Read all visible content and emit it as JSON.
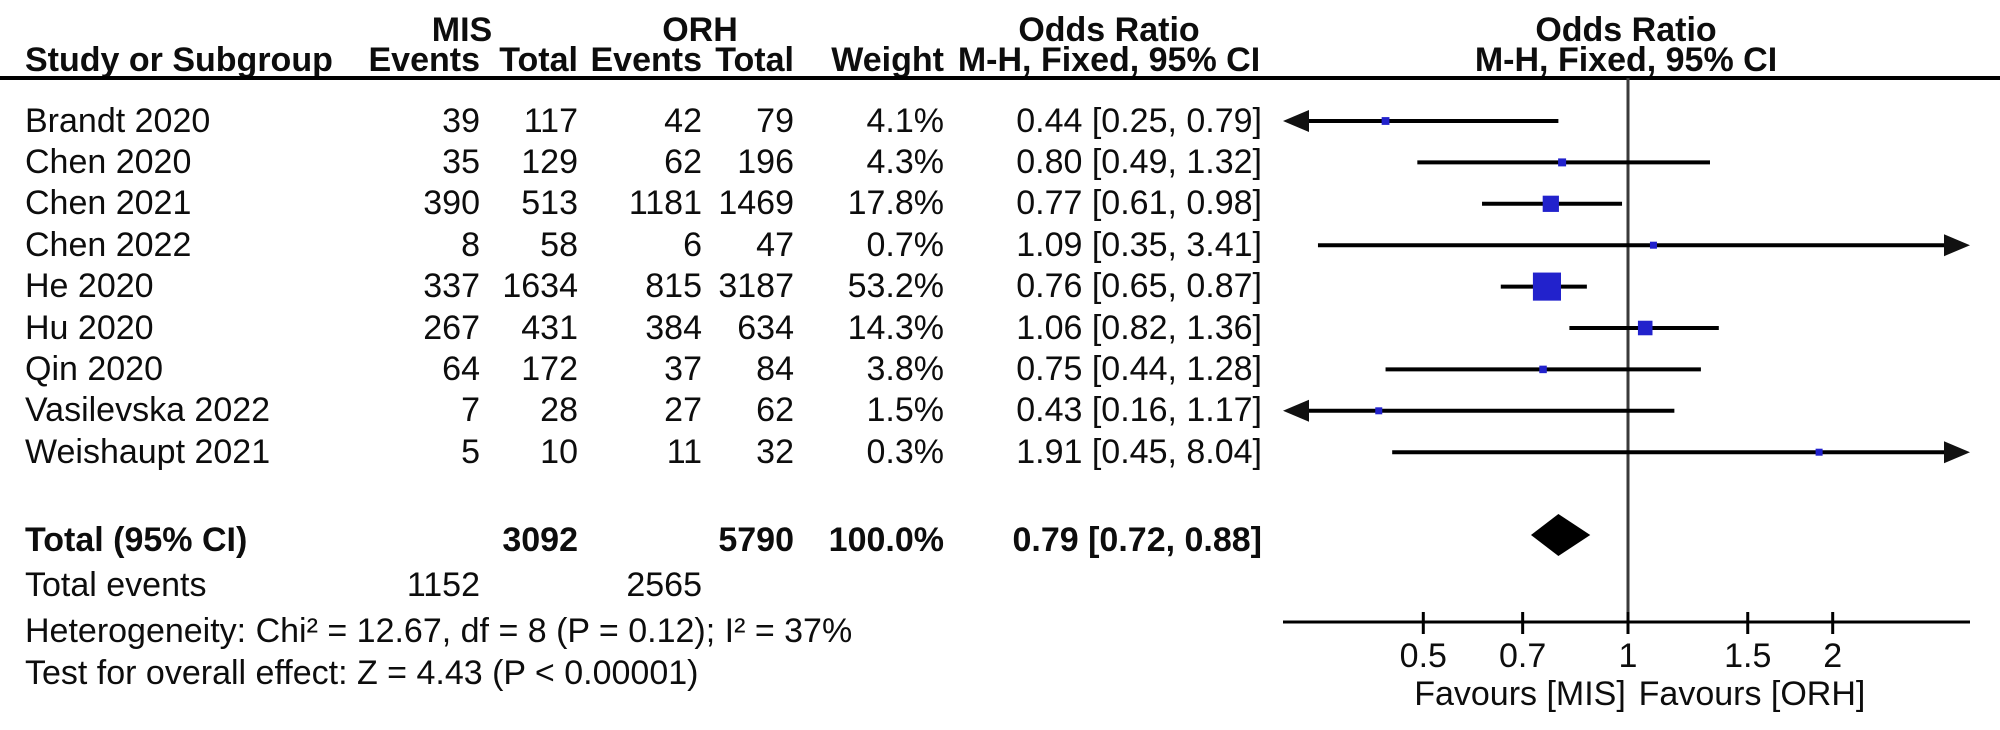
{
  "table": {
    "headers": {
      "group1": "MIS",
      "group2": "ORH",
      "odds_ratio": "Odds Ratio",
      "study": "Study or Subgroup",
      "events": "Events",
      "total": "Total",
      "weight": "Weight",
      "mh_ci": "M-H, Fixed, 95% CI"
    },
    "total_row": {
      "label": "Total (95% CI)",
      "mis_total": "3092",
      "orh_total": "5790",
      "weight": "100.0%",
      "or_text": "0.79 [0.72, 0.88]"
    },
    "total_events_row": {
      "label": "Total events",
      "mis_events": "1152",
      "orh_events": "2565"
    },
    "heterogeneity": "Heterogeneity: Chi² = 12.67, df = 8 (P = 0.12); I² = 37%",
    "overall_effect": "Test for overall effect: Z = 4.43 (P < 0.00001)"
  },
  "chart_data": {
    "type": "forest",
    "x_scale": "log10",
    "x_axis_ticks": [
      "0.5",
      "0.7",
      "1",
      "1.5",
      "2"
    ],
    "x_range": [
      0.31,
      3.2
    ],
    "no_effect_value": 1,
    "favours_left": "Favours [MIS]",
    "favours_right": "Favours [ORH]",
    "marker_color": "#2222CC",
    "line_color": "#000000",
    "studies": [
      {
        "study": "Brandt 2020",
        "mis_events": "39",
        "mis_total": "117",
        "orh_events": "42",
        "orh_total": "79",
        "weight": "4.1%",
        "weight_pct": 4.1,
        "or": 0.44,
        "ci_low": 0.25,
        "ci_high": 0.79,
        "or_text": "0.44 [0.25, 0.79]"
      },
      {
        "study": "Chen 2020",
        "mis_events": "35",
        "mis_total": "129",
        "orh_events": "62",
        "orh_total": "196",
        "weight": "4.3%",
        "weight_pct": 4.3,
        "or": 0.8,
        "ci_low": 0.49,
        "ci_high": 1.32,
        "or_text": "0.80 [0.49, 1.32]"
      },
      {
        "study": "Chen 2021",
        "mis_events": "390",
        "mis_total": "513",
        "orh_events": "1181",
        "orh_total": "1469",
        "weight": "17.8%",
        "weight_pct": 17.8,
        "or": 0.77,
        "ci_low": 0.61,
        "ci_high": 0.98,
        "or_text": "0.77 [0.61, 0.98]"
      },
      {
        "study": "Chen 2022",
        "mis_events": "8",
        "mis_total": "58",
        "orh_events": "6",
        "orh_total": "47",
        "weight": "0.7%",
        "weight_pct": 0.7,
        "or": 1.09,
        "ci_low": 0.35,
        "ci_high": 3.41,
        "or_text": "1.09 [0.35, 3.41]"
      },
      {
        "study": "He 2020",
        "mis_events": "337",
        "mis_total": "1634",
        "orh_events": "815",
        "orh_total": "3187",
        "weight": "53.2%",
        "weight_pct": 53.2,
        "or": 0.76,
        "ci_low": 0.65,
        "ci_high": 0.87,
        "or_text": "0.76 [0.65, 0.87]"
      },
      {
        "study": "Hu 2020",
        "mis_events": "267",
        "mis_total": "431",
        "orh_events": "384",
        "orh_total": "634",
        "weight": "14.3%",
        "weight_pct": 14.3,
        "or": 1.06,
        "ci_low": 0.82,
        "ci_high": 1.36,
        "or_text": "1.06 [0.82, 1.36]"
      },
      {
        "study": "Qin 2020",
        "mis_events": "64",
        "mis_total": "172",
        "orh_events": "37",
        "orh_total": "84",
        "weight": "3.8%",
        "weight_pct": 3.8,
        "or": 0.75,
        "ci_low": 0.44,
        "ci_high": 1.28,
        "or_text": "0.75 [0.44, 1.28]"
      },
      {
        "study": "Vasilevska 2022",
        "mis_events": "7",
        "mis_total": "28",
        "orh_events": "27",
        "orh_total": "62",
        "weight": "1.5%",
        "weight_pct": 1.5,
        "or": 0.43,
        "ci_low": 0.16,
        "ci_high": 1.17,
        "or_text": "0.43 [0.16, 1.17]"
      },
      {
        "study": "Weishaupt 2021",
        "mis_events": "5",
        "mis_total": "10",
        "orh_events": "11",
        "orh_total": "32",
        "weight": "0.3%",
        "weight_pct": 0.3,
        "or": 1.91,
        "ci_low": 0.45,
        "ci_high": 8.04,
        "or_text": "1.91 [0.45, 8.04]"
      }
    ],
    "total": {
      "or": 0.79,
      "ci_low": 0.72,
      "ci_high": 0.88
    }
  }
}
